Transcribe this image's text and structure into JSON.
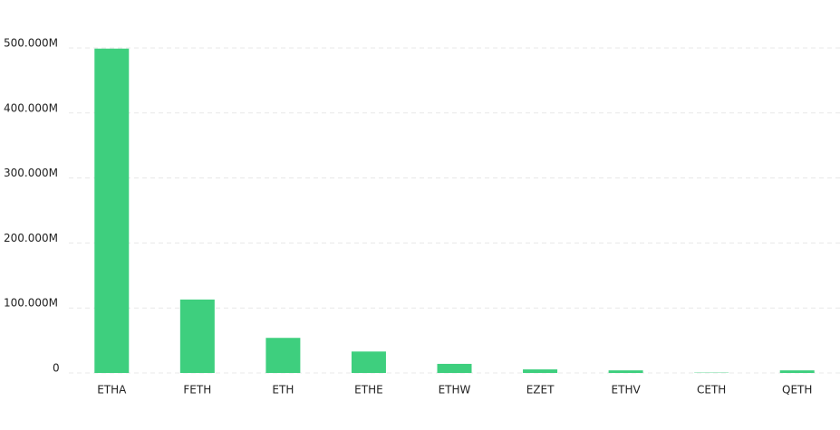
{
  "chart_data": {
    "type": "bar",
    "categories": [
      "ETHA",
      "FETH",
      "ETH",
      "ETHE",
      "ETHW",
      "EZET",
      "ETHV",
      "CETH",
      "QETH"
    ],
    "values": [
      499000000,
      113000000,
      54000000,
      33000000,
      14000000,
      5500000,
      4000000,
      500000,
      4000000
    ],
    "color": "#3ecf7e",
    "ylim": [
      0,
      500000000
    ],
    "yticks": [
      0,
      {
        "value": 100000000,
        "label": "100.000M"
      },
      {
        "value": 200000000,
        "label": "200.000M"
      },
      {
        "value": 300000000,
        "label": "300.000M"
      },
      {
        "value": 400000000,
        "label": "400.000M"
      },
      {
        "value": 500000000,
        "label": "500.000M"
      }
    ],
    "grid": true
  }
}
